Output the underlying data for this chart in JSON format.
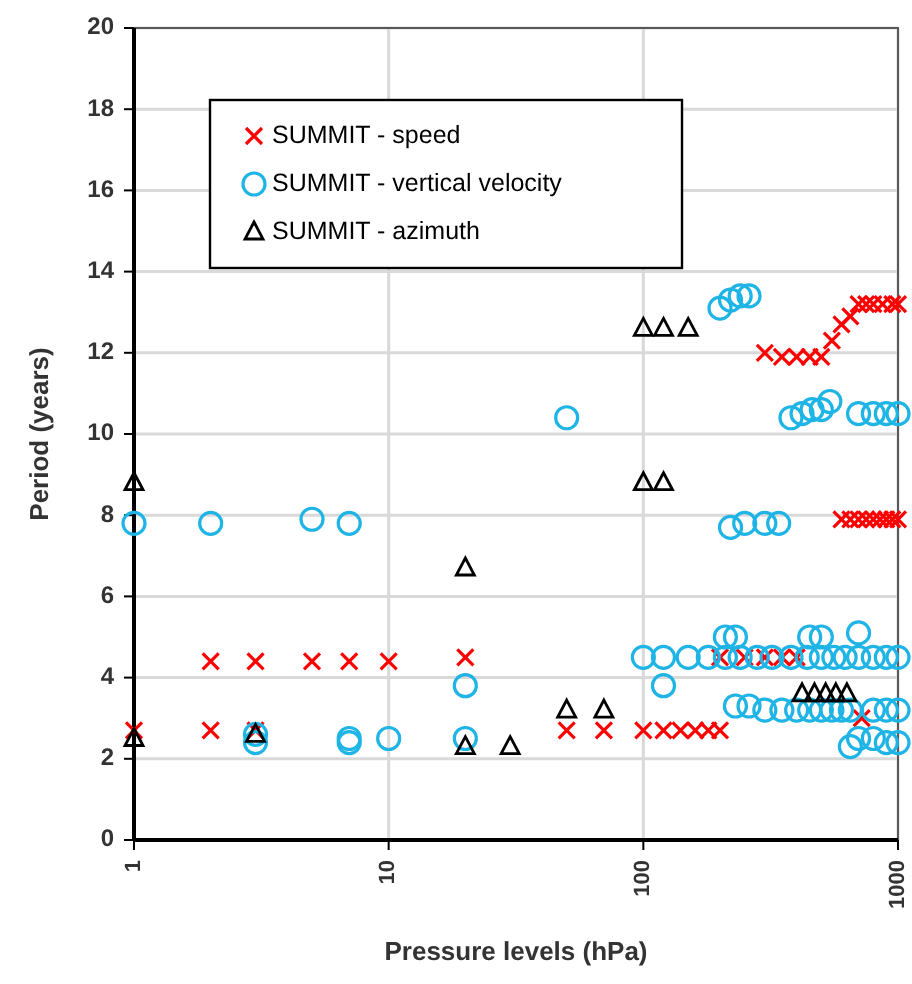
{
  "chart_data": {
    "type": "scatter",
    "xlabel": "Pressure levels (hPa)",
    "ylabel": "Period (years)",
    "log": "x",
    "xlim": [
      1,
      1000
    ],
    "xticks": [
      1,
      10,
      100,
      1000
    ],
    "ylim": [
      0,
      20
    ],
    "yticks": [
      0,
      2,
      4,
      6,
      8,
      10,
      12,
      14,
      16,
      18,
      20
    ],
    "grid": true,
    "legend": "top left",
    "series": [
      {
        "name": "SUMMIT - speed",
        "color": "#ff0000",
        "marker": "cross",
        "x": [
          1,
          2,
          2,
          3,
          3,
          5,
          7,
          10,
          20,
          50,
          70,
          100,
          120,
          140,
          160,
          180,
          200,
          200,
          250,
          300,
          350,
          400,
          300,
          350,
          400,
          450,
          500,
          550,
          600,
          650,
          700,
          750,
          800,
          870,
          950,
          1000,
          600,
          650,
          700,
          750,
          800,
          850,
          900,
          950,
          1000,
          720
        ],
        "values": [
          2.7,
          4.4,
          2.7,
          4.4,
          2.7,
          4.4,
          4.4,
          4.4,
          4.5,
          2.7,
          2.7,
          2.7,
          2.7,
          2.7,
          2.7,
          2.7,
          2.7,
          4.5,
          4.5,
          4.5,
          4.5,
          4.5,
          12,
          11.9,
          11.9,
          11.9,
          11.9,
          12.3,
          12.7,
          12.9,
          13.2,
          13.2,
          13.2,
          13.2,
          13.2,
          13.2,
          7.9,
          7.9,
          7.9,
          7.9,
          7.9,
          7.9,
          7.9,
          7.9,
          7.9,
          3
        ]
      },
      {
        "name": "SUMMIT - vertical velocity",
        "color": "#1eb4e6",
        "marker": "circle",
        "x": [
          1,
          2,
          5,
          7,
          3,
          3,
          7,
          7,
          10,
          20,
          20,
          50,
          200,
          220,
          240,
          260,
          380,
          420,
          460,
          500,
          540,
          700,
          800,
          900,
          1000,
          220,
          250,
          300,
          340,
          100,
          120,
          150,
          180,
          210,
          240,
          280,
          320,
          380,
          440,
          500,
          560,
          620,
          700,
          800,
          900,
          1000,
          210,
          230,
          450,
          500,
          700,
          120,
          230,
          260,
          300,
          350,
          400,
          450,
          500,
          550,
          600,
          650,
          800,
          900,
          1000,
          700,
          650,
          800,
          900,
          1000
        ],
        "values": [
          7.8,
          7.8,
          7.9,
          7.8,
          2.6,
          2.4,
          2.5,
          2.4,
          2.5,
          3.8,
          2.5,
          10.4,
          13.1,
          13.3,
          13.4,
          13.4,
          10.4,
          10.5,
          10.6,
          10.6,
          10.8,
          10.5,
          10.5,
          10.5,
          10.5,
          7.7,
          7.8,
          7.8,
          7.8,
          4.5,
          4.5,
          4.5,
          4.5,
          4.5,
          4.5,
          4.5,
          4.5,
          4.5,
          4.5,
          4.5,
          4.5,
          4.5,
          4.5,
          4.5,
          4.5,
          4.5,
          5,
          5,
          5,
          5,
          5.1,
          3.8,
          3.3,
          3.3,
          3.2,
          3.2,
          3.2,
          3.2,
          3.2,
          3.2,
          3.2,
          3.2,
          3.2,
          3.2,
          3.2,
          2.5,
          2.3,
          2.5,
          2.4,
          2.4
        ]
      },
      {
        "name": "SUMMIT - azimuth",
        "color": "#000000",
        "marker": "triangle",
        "x": [
          1,
          1,
          3,
          20,
          20,
          30,
          50,
          70,
          100,
          120,
          150,
          100,
          120,
          420,
          470,
          520,
          570,
          630
        ],
        "values": [
          8.8,
          2.5,
          2.6,
          6.7,
          2.3,
          2.3,
          3.2,
          3.2,
          12.6,
          12.6,
          12.6,
          8.8,
          8.8,
          3.6,
          3.6,
          3.6,
          3.6,
          3.6
        ]
      }
    ]
  }
}
